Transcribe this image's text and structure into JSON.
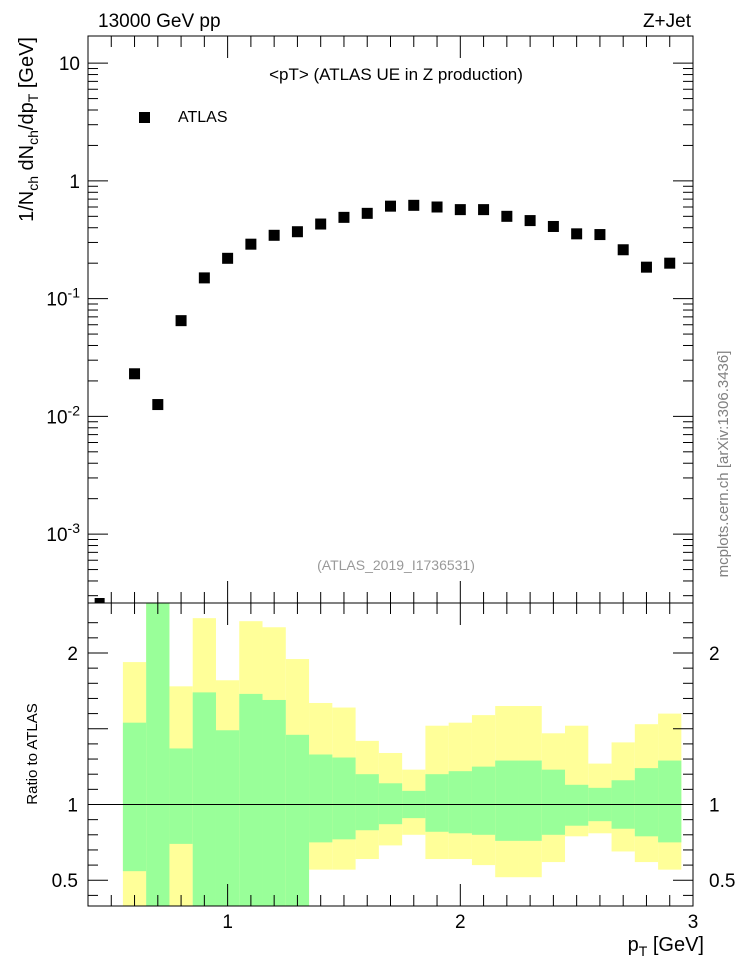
{
  "header": {
    "left": "13000 GeV pp",
    "right": "Z+Jet"
  },
  "watermark": "mcplots.cern.ch [arXiv:1306.3436]",
  "chart_data": [
    {
      "type": "scatter",
      "title": "<pT> (ATLAS UE in Z production)",
      "analysis_id": "(ATLAS_2019_I1736531)",
      "ylabel": "1/N_ch dN_ch/dp_T [GeV]",
      "yscale": "log",
      "ylim": [
        0.00026,
        17
      ],
      "xlim": [
        0.4,
        3.0
      ],
      "legend": {
        "position": "top-left",
        "entries": [
          "ATLAS"
        ]
      },
      "y_tick_labels": [
        "10^-3",
        "10^-2",
        "10^-1",
        "1",
        "10"
      ],
      "series": [
        {
          "name": "ATLAS",
          "marker": "square",
          "color": "#000000",
          "x": [
            0.45,
            0.6,
            0.7,
            0.8,
            0.9,
            1.0,
            1.1,
            1.2,
            1.3,
            1.4,
            1.5,
            1.6,
            1.7,
            1.8,
            1.9,
            2.0,
            2.1,
            2.2,
            2.3,
            2.4,
            2.5,
            2.6,
            2.7,
            2.8,
            2.9
          ],
          "y": [
            0.00025,
            0.023,
            0.0126,
            0.065,
            0.15,
            0.22,
            0.29,
            0.345,
            0.37,
            0.43,
            0.49,
            0.53,
            0.61,
            0.62,
            0.6,
            0.57,
            0.57,
            0.5,
            0.46,
            0.41,
            0.355,
            0.35,
            0.26,
            0.185,
            0.2
          ]
        }
      ]
    },
    {
      "type": "area",
      "ylabel": "Ratio to ATLAS",
      "xlabel": "p_T [GeV]",
      "xlim": [
        0.4,
        3.0
      ],
      "ylim": [
        0.33,
        2.33
      ],
      "x_tick_labels": [
        "1",
        "2",
        "3"
      ],
      "y_tick_labels": [
        "0.5",
        "1",
        "2"
      ],
      "colors": {
        "outer_band": "#ffff99",
        "inner_band": "#99ff99",
        "reference": "#000000"
      },
      "bins": [
        {
          "x0": 0.55,
          "x1": 0.65,
          "outer_lo": 0.33,
          "outer_hi": 1.94,
          "inner_lo": 0.56,
          "inner_hi": 1.54
        },
        {
          "x0": 0.65,
          "x1": 0.75,
          "outer_lo": 0.33,
          "outer_hi": 2.33,
          "inner_lo": 0.33,
          "inner_hi": 2.33
        },
        {
          "x0": 0.75,
          "x1": 0.85,
          "outer_lo": 0.33,
          "outer_hi": 1.78,
          "inner_lo": 0.74,
          "inner_hi": 1.37
        },
        {
          "x0": 0.85,
          "x1": 0.95,
          "outer_lo": 0.33,
          "outer_hi": 2.23,
          "inner_lo": 0.33,
          "inner_hi": 1.74
        },
        {
          "x0": 0.95,
          "x1": 1.05,
          "outer_lo": 0.65,
          "outer_hi": 1.82,
          "inner_lo": 0.33,
          "inner_hi": 1.49
        },
        {
          "x0": 1.05,
          "x1": 1.15,
          "outer_lo": 0.33,
          "outer_hi": 2.21,
          "inner_lo": 0.33,
          "inner_hi": 1.73
        },
        {
          "x0": 1.15,
          "x1": 1.25,
          "outer_lo": 0.33,
          "outer_hi": 2.17,
          "inner_lo": 0.33,
          "inner_hi": 1.69
        },
        {
          "x0": 1.25,
          "x1": 1.35,
          "outer_lo": 0.33,
          "outer_hi": 1.96,
          "inner_lo": 0.33,
          "inner_hi": 1.46
        },
        {
          "x0": 1.35,
          "x1": 1.45,
          "outer_lo": 0.57,
          "outer_hi": 1.67,
          "inner_lo": 0.75,
          "inner_hi": 1.33
        },
        {
          "x0": 1.45,
          "x1": 1.55,
          "outer_lo": 0.57,
          "outer_hi": 1.64,
          "inner_lo": 0.77,
          "inner_hi": 1.31
        },
        {
          "x0": 1.55,
          "x1": 1.65,
          "outer_lo": 0.64,
          "outer_hi": 1.42,
          "inner_lo": 0.83,
          "inner_hi": 1.2
        },
        {
          "x0": 1.65,
          "x1": 1.75,
          "outer_lo": 0.73,
          "outer_hi": 1.34,
          "inner_lo": 0.87,
          "inner_hi": 1.14
        },
        {
          "x0": 1.75,
          "x1": 1.85,
          "outer_lo": 0.8,
          "outer_hi": 1.23,
          "inner_lo": 0.91,
          "inner_hi": 1.09
        },
        {
          "x0": 1.85,
          "x1": 1.95,
          "outer_lo": 0.64,
          "outer_hi": 1.52,
          "inner_lo": 0.82,
          "inner_hi": 1.2
        },
        {
          "x0": 1.95,
          "x1": 2.05,
          "outer_lo": 0.64,
          "outer_hi": 1.54,
          "inner_lo": 0.81,
          "inner_hi": 1.22
        },
        {
          "x0": 2.05,
          "x1": 2.15,
          "outer_lo": 0.6,
          "outer_hi": 1.59,
          "inner_lo": 0.8,
          "inner_hi": 1.25
        },
        {
          "x0": 2.15,
          "x1": 2.25,
          "outer_lo": 0.52,
          "outer_hi": 1.65,
          "inner_lo": 0.76,
          "inner_hi": 1.29
        },
        {
          "x0": 2.25,
          "x1": 2.35,
          "outer_lo": 0.52,
          "outer_hi": 1.65,
          "inner_lo": 0.76,
          "inner_hi": 1.29
        },
        {
          "x0": 2.35,
          "x1": 2.45,
          "outer_lo": 0.62,
          "outer_hi": 1.47,
          "inner_lo": 0.8,
          "inner_hi": 1.23
        },
        {
          "x0": 2.45,
          "x1": 2.55,
          "outer_lo": 0.79,
          "outer_hi": 1.52,
          "inner_lo": 0.86,
          "inner_hi": 1.13
        },
        {
          "x0": 2.55,
          "x1": 2.65,
          "outer_lo": 0.81,
          "outer_hi": 1.27,
          "inner_lo": 0.89,
          "inner_hi": 1.11
        },
        {
          "x0": 2.65,
          "x1": 2.75,
          "outer_lo": 0.69,
          "outer_hi": 1.41,
          "inner_lo": 0.84,
          "inner_hi": 1.16
        },
        {
          "x0": 2.75,
          "x1": 2.85,
          "outer_lo": 0.62,
          "outer_hi": 1.53,
          "inner_lo": 0.79,
          "inner_hi": 1.24
        },
        {
          "x0": 2.85,
          "x1": 2.95,
          "outer_lo": 0.57,
          "outer_hi": 1.6,
          "inner_lo": 0.75,
          "inner_hi": 1.29
        }
      ]
    }
  ]
}
